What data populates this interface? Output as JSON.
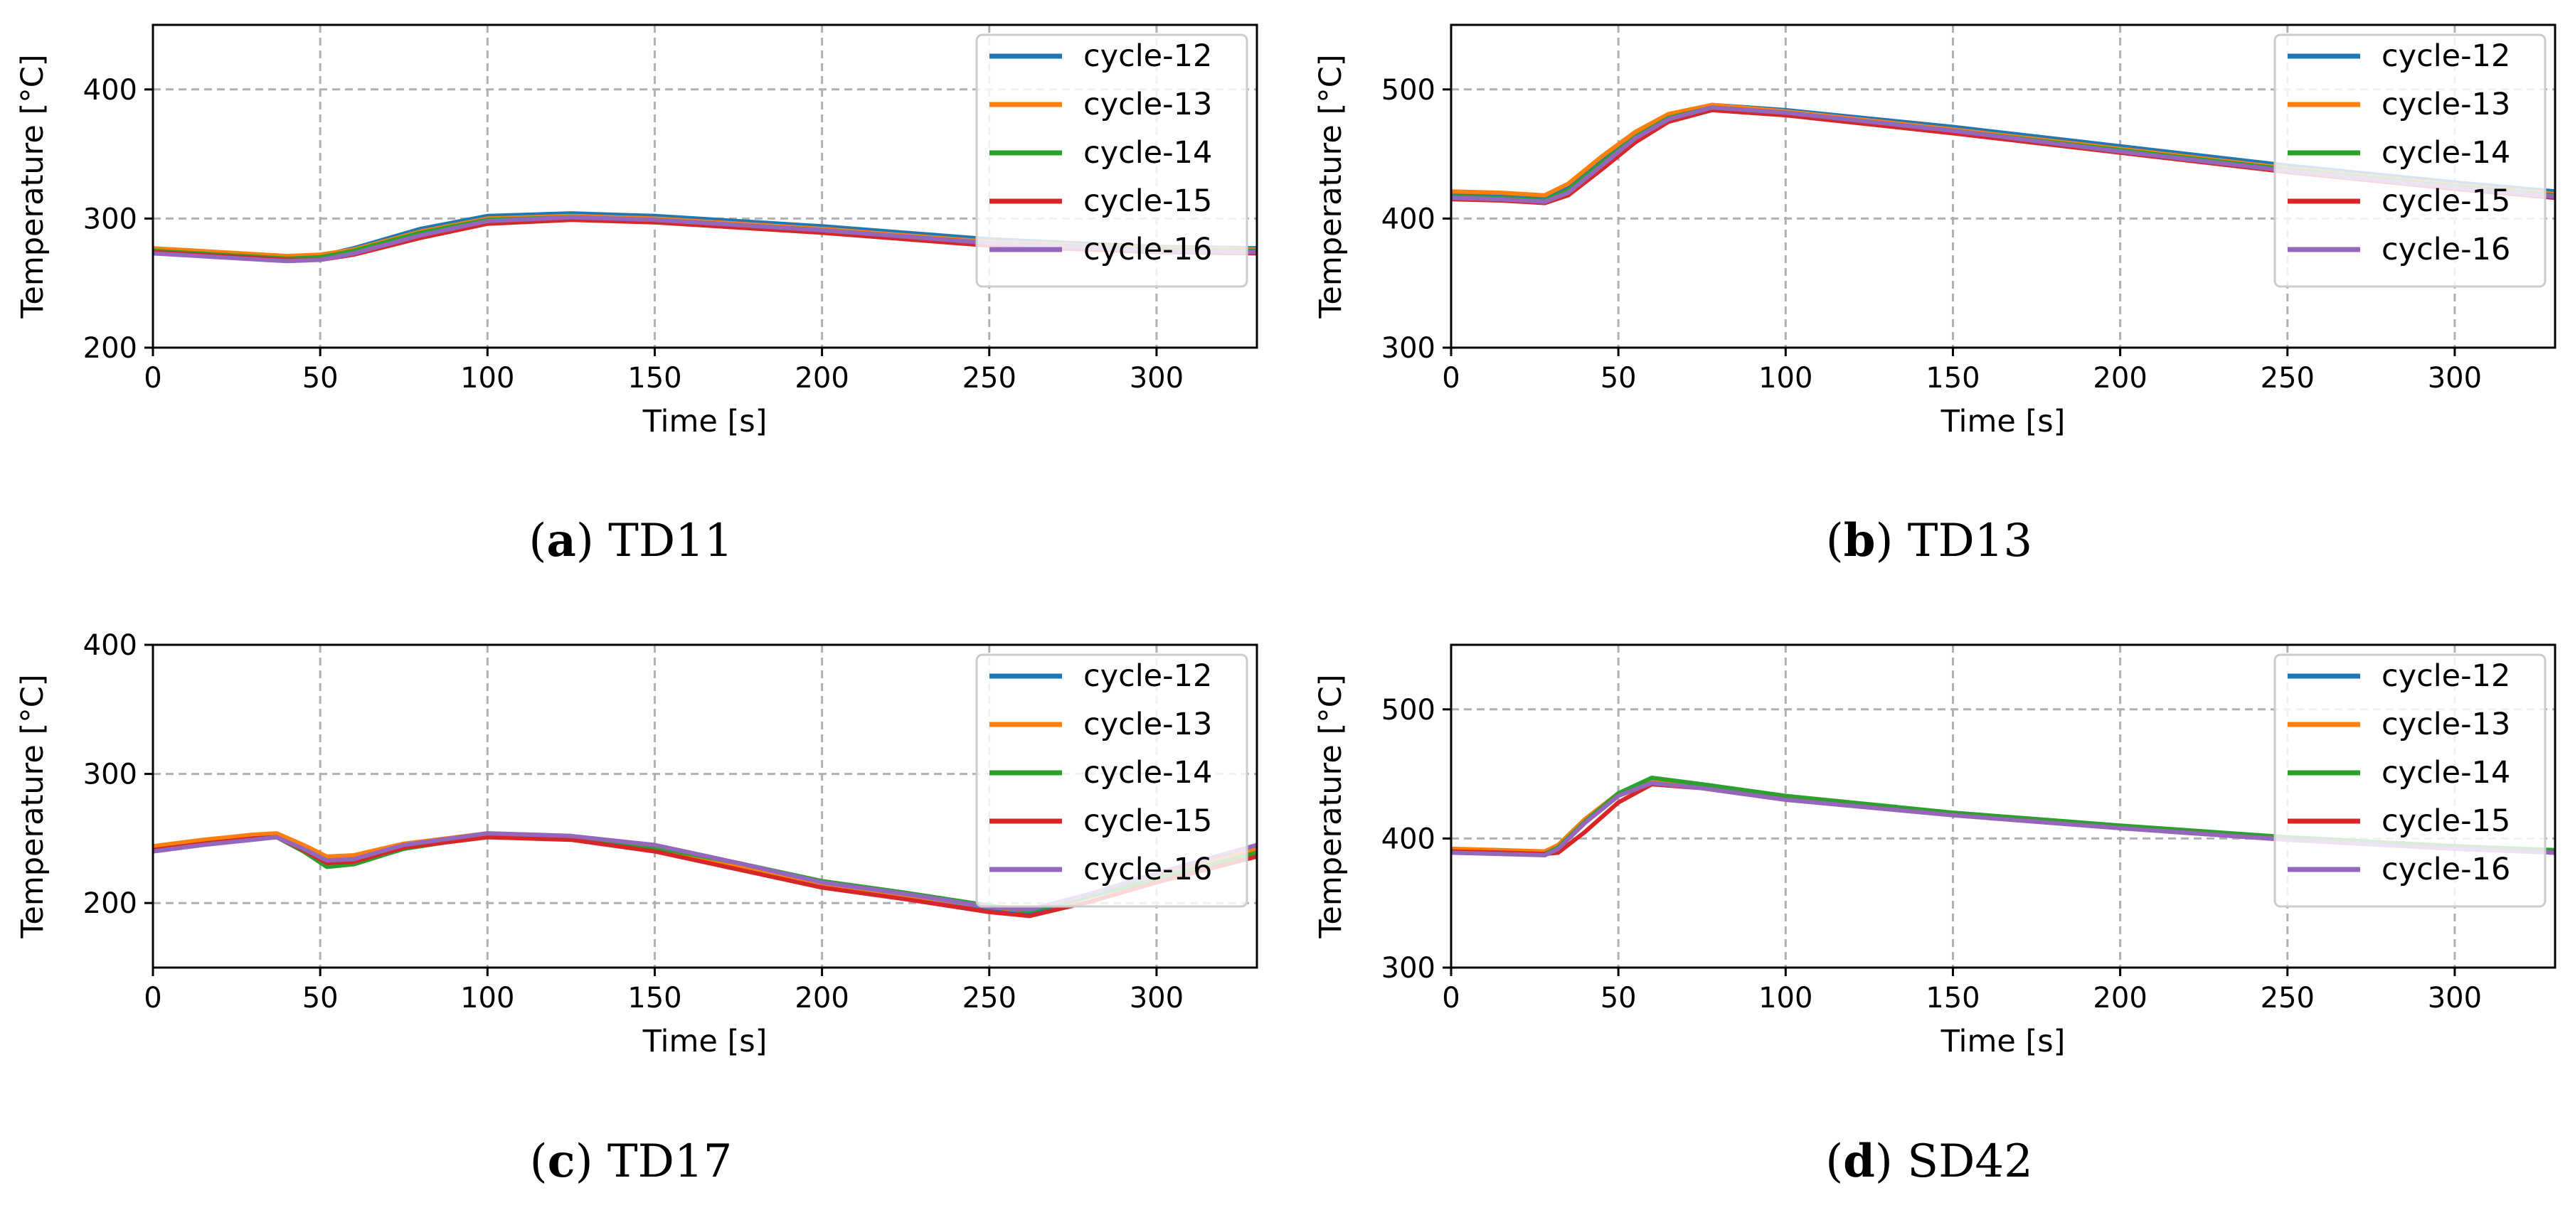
{
  "chart_data": [
    {
      "type": "line",
      "caption_letter": "a",
      "caption_name": "TD11",
      "xlabel": "Time [s]",
      "ylabel": "Temperature [°C]",
      "xlim": [
        0,
        330
      ],
      "ylim": [
        200,
        450
      ],
      "xticks": [
        "0",
        "50",
        "100",
        "150",
        "200",
        "250",
        "300"
      ],
      "yticks": [
        "200",
        "300",
        "400"
      ],
      "grid": true,
      "legend": "top-right",
      "x": [
        0,
        20,
        40,
        50,
        60,
        80,
        100,
        125,
        150,
        200,
        250,
        300,
        330
      ],
      "series": [
        {
          "name": "cycle-12",
          "color": "#1f77b4",
          "values": [
            276,
            273,
            270,
            271,
            277,
            292,
            302,
            304,
            302,
            294,
            284,
            278,
            277
          ]
        },
        {
          "name": "cycle-13",
          "color": "#ff7f0e",
          "values": [
            277,
            274,
            271,
            272,
            276,
            290,
            300,
            302,
            300,
            292,
            282,
            277,
            276
          ]
        },
        {
          "name": "cycle-14",
          "color": "#2ca02c",
          "values": [
            275,
            272,
            269,
            270,
            275,
            289,
            299,
            301,
            299,
            291,
            281,
            276,
            275
          ]
        },
        {
          "name": "cycle-15",
          "color": "#d62728",
          "values": [
            274,
            271,
            268,
            268,
            272,
            285,
            296,
            299,
            297,
            289,
            279,
            274,
            273
          ]
        },
        {
          "name": "cycle-16",
          "color": "#9467bd",
          "values": [
            273,
            270,
            267,
            268,
            273,
            287,
            298,
            301,
            299,
            291,
            281,
            275,
            274
          ]
        }
      ]
    },
    {
      "type": "line",
      "caption_letter": "b",
      "caption_name": "TD13",
      "xlabel": "Time [s]",
      "ylabel": "Temperature [°C]",
      "xlim": [
        0,
        330
      ],
      "ylim": [
        300,
        550
      ],
      "xticks": [
        "0",
        "50",
        "100",
        "150",
        "200",
        "250",
        "300"
      ],
      "yticks": [
        "300",
        "400",
        "500"
      ],
      "grid": true,
      "legend": "top-right",
      "x": [
        0,
        15,
        28,
        35,
        45,
        55,
        65,
        78,
        100,
        150,
        200,
        250,
        300,
        330
      ],
      "series": [
        {
          "name": "cycle-12",
          "color": "#1f77b4",
          "values": [
            420,
            419,
            417,
            425,
            446,
            466,
            480,
            488,
            484,
            471,
            456,
            441,
            428,
            421
          ]
        },
        {
          "name": "cycle-13",
          "color": "#ff7f0e",
          "values": [
            421,
            420,
            418,
            427,
            448,
            467,
            481,
            488,
            483,
            469,
            454,
            439,
            426,
            419
          ]
        },
        {
          "name": "cycle-14",
          "color": "#2ca02c",
          "values": [
            417,
            416,
            414,
            422,
            443,
            463,
            478,
            486,
            482,
            468,
            453,
            438,
            425,
            418
          ]
        },
        {
          "name": "cycle-15",
          "color": "#d62728",
          "values": [
            415,
            414,
            412,
            418,
            438,
            459,
            475,
            484,
            480,
            466,
            451,
            436,
            423,
            416
          ]
        },
        {
          "name": "cycle-16",
          "color": "#9467bd",
          "values": [
            416,
            415,
            413,
            420,
            441,
            462,
            477,
            486,
            482,
            468,
            452,
            437,
            424,
            417
          ]
        }
      ]
    },
    {
      "type": "line",
      "caption_letter": "c",
      "caption_name": "TD17",
      "xlabel": "Time [s]",
      "ylabel": "Temperature [°C]",
      "xlim": [
        0,
        330
      ],
      "ylim": [
        150,
        400
      ],
      "xticks": [
        "0",
        "50",
        "100",
        "150",
        "200",
        "250",
        "300"
      ],
      "yticks": [
        "200",
        "300",
        "400"
      ],
      "grid": true,
      "legend": "top-right",
      "x": [
        0,
        15,
        30,
        37,
        45,
        52,
        60,
        75,
        100,
        125,
        150,
        175,
        200,
        225,
        250,
        262,
        280,
        300,
        330
      ],
      "series": [
        {
          "name": "cycle-12",
          "color": "#1f77b4",
          "values": [
            242,
            247,
            251,
            252,
            242,
            232,
            233,
            244,
            253,
            251,
            242,
            228,
            214,
            206,
            196,
            193,
            205,
            220,
            240
          ]
        },
        {
          "name": "cycle-13",
          "color": "#ff7f0e",
          "values": [
            244,
            249,
            253,
            254,
            245,
            236,
            237,
            246,
            254,
            252,
            243,
            229,
            215,
            206,
            197,
            194,
            206,
            221,
            242
          ]
        },
        {
          "name": "cycle-14",
          "color": "#2ca02c",
          "values": [
            241,
            246,
            250,
            251,
            240,
            228,
            230,
            242,
            252,
            251,
            243,
            231,
            217,
            208,
            198,
            194,
            205,
            219,
            239
          ]
        },
        {
          "name": "cycle-15",
          "color": "#d62728",
          "values": [
            241,
            246,
            250,
            251,
            241,
            231,
            232,
            243,
            251,
            249,
            240,
            226,
            212,
            203,
            193,
            190,
            201,
            216,
            236
          ]
        },
        {
          "name": "cycle-16",
          "color": "#9467bd",
          "values": [
            240,
            245,
            249,
            251,
            242,
            233,
            234,
            245,
            254,
            252,
            245,
            231,
            216,
            207,
            197,
            195,
            207,
            223,
            245
          ]
        }
      ]
    },
    {
      "type": "line",
      "caption_letter": "d",
      "caption_name": "SD42",
      "xlabel": "Time [s]",
      "ylabel": "Temperature [°C]",
      "xlim": [
        0,
        330
      ],
      "ylim": [
        300,
        550
      ],
      "xticks": [
        "0",
        "50",
        "100",
        "150",
        "200",
        "250",
        "300"
      ],
      "yticks": [
        "300",
        "400",
        "500"
      ],
      "grid": true,
      "legend": "top-right",
      "x": [
        0,
        15,
        28,
        32,
        40,
        50,
        60,
        75,
        100,
        150,
        200,
        250,
        300,
        330
      ],
      "series": [
        {
          "name": "cycle-12",
          "color": "#1f77b4",
          "values": [
            391,
            390,
            389,
            394,
            414,
            434,
            444,
            440,
            431,
            419,
            409,
            400,
            393,
            390
          ]
        },
        {
          "name": "cycle-13",
          "color": "#ff7f0e",
          "values": [
            392,
            391,
            390,
            395,
            415,
            435,
            444,
            440,
            431,
            419,
            409,
            400,
            393,
            390
          ]
        },
        {
          "name": "cycle-14",
          "color": "#2ca02c",
          "values": [
            390,
            389,
            388,
            393,
            413,
            435,
            447,
            442,
            433,
            420,
            410,
            401,
            394,
            391
          ]
        },
        {
          "name": "cycle-15",
          "color": "#d62728",
          "values": [
            390,
            389,
            388,
            389,
            405,
            428,
            442,
            439,
            430,
            418,
            408,
            399,
            392,
            389
          ]
        },
        {
          "name": "cycle-16",
          "color": "#9467bd",
          "values": [
            389,
            388,
            387,
            392,
            412,
            433,
            443,
            439,
            430,
            418,
            408,
            399,
            392,
            389
          ]
        }
      ]
    }
  ]
}
